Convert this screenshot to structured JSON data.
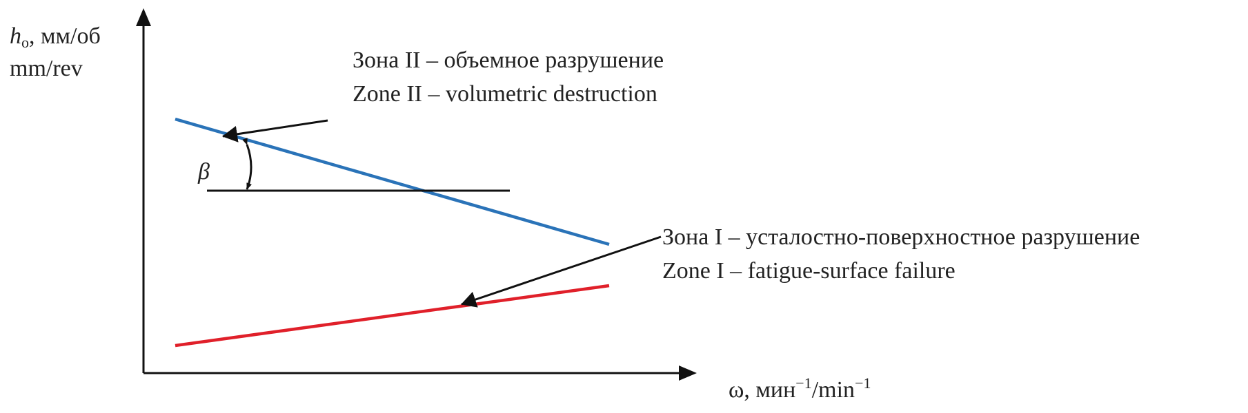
{
  "y_axis": {
    "symbol": "h",
    "subscript": "o",
    "unit_ru": ", мм/об",
    "unit_en": "mm/rev"
  },
  "x_axis": {
    "symbol": "ω, мин",
    "sup1": "−1",
    "mid": "/min",
    "sup2": "−1"
  },
  "angle_label": "β",
  "zones": [
    {
      "ru": "Зона II – объемное разрушение",
      "en": "Zone II – volumetric destruction"
    },
    {
      "ru": "Зона I – усталостно-поверхностное разрушение",
      "en": "Zone I – fatigue-surface failure"
    }
  ]
}
